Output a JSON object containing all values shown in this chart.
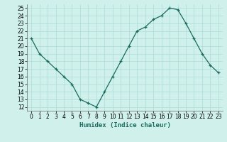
{
  "x": [
    0,
    1,
    2,
    3,
    4,
    5,
    6,
    7,
    8,
    9,
    10,
    11,
    12,
    13,
    14,
    15,
    16,
    17,
    18,
    19,
    20,
    21,
    22,
    23
  ],
  "y": [
    21,
    19,
    18,
    17,
    16,
    15,
    13,
    12.5,
    12,
    14,
    16,
    18,
    20,
    22,
    22.5,
    23.5,
    24,
    25,
    24.8,
    23,
    21,
    19,
    17.5,
    16.5
  ],
  "title": "",
  "xlabel": "Humidex (Indice chaleur)",
  "ylabel": "",
  "ylim": [
    11.5,
    25.5
  ],
  "xlim": [
    -0.5,
    23.5
  ],
  "yticks": [
    12,
    13,
    14,
    15,
    16,
    17,
    18,
    19,
    20,
    21,
    22,
    23,
    24,
    25
  ],
  "xticks": [
    0,
    1,
    2,
    3,
    4,
    5,
    6,
    7,
    8,
    9,
    10,
    11,
    12,
    13,
    14,
    15,
    16,
    17,
    18,
    19,
    20,
    21,
    22,
    23
  ],
  "line_color": "#1a6b5e",
  "marker": "+",
  "bg_color": "#cff0eb",
  "grid_color": "#aaddda",
  "label_fontsize": 6.5,
  "tick_fontsize": 5.5
}
